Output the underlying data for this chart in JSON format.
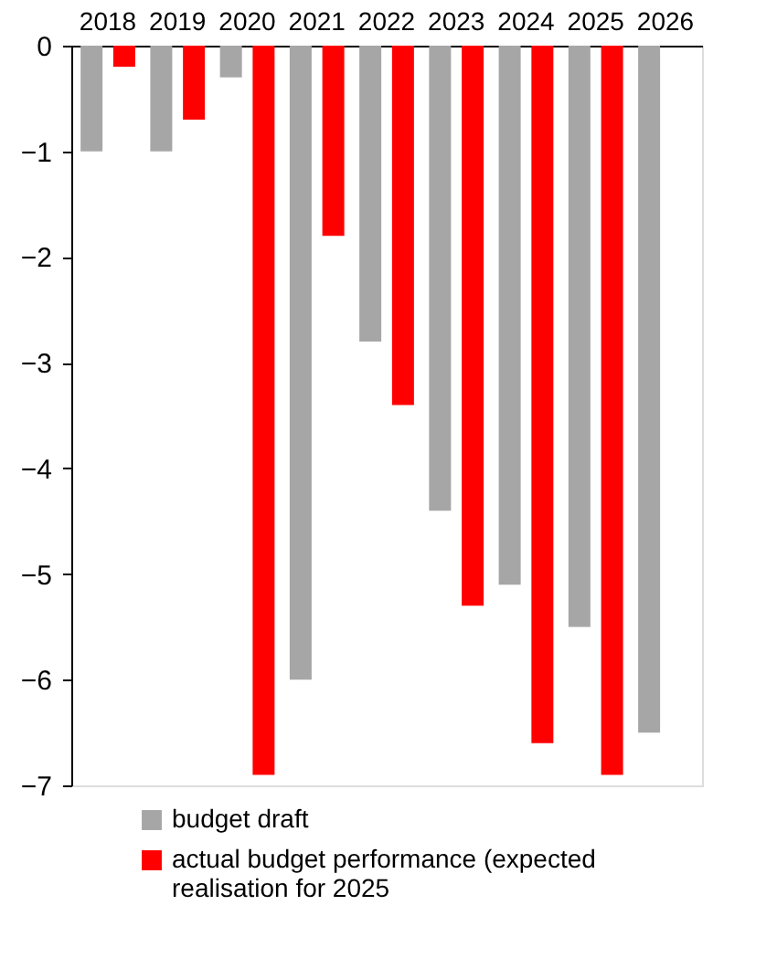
{
  "chart_data": {
    "type": "bar",
    "categories": [
      "2018",
      "2019",
      "2020",
      "2021",
      "2022",
      "2023",
      "2024",
      "2025",
      "2026"
    ],
    "series": [
      {
        "name": "budget draft",
        "color": "#a6a6a6",
        "values": [
          -1.0,
          -1.0,
          -0.3,
          -6.0,
          -2.8,
          -4.4,
          -5.1,
          -5.5,
          -6.5
        ]
      },
      {
        "name": "actual budget performance (expected realisation for 2025",
        "color": "#ff0000",
        "values": [
          -0.2,
          -0.7,
          -6.9,
          -1.8,
          -3.4,
          -5.3,
          -6.6,
          -6.9,
          null
        ]
      }
    ],
    "ylim": [
      -7,
      0
    ],
    "yticks": [
      -7,
      -6,
      -5,
      -4,
      -3,
      -2,
      -1,
      0
    ],
    "grid": false,
    "legend": "bottom left"
  }
}
